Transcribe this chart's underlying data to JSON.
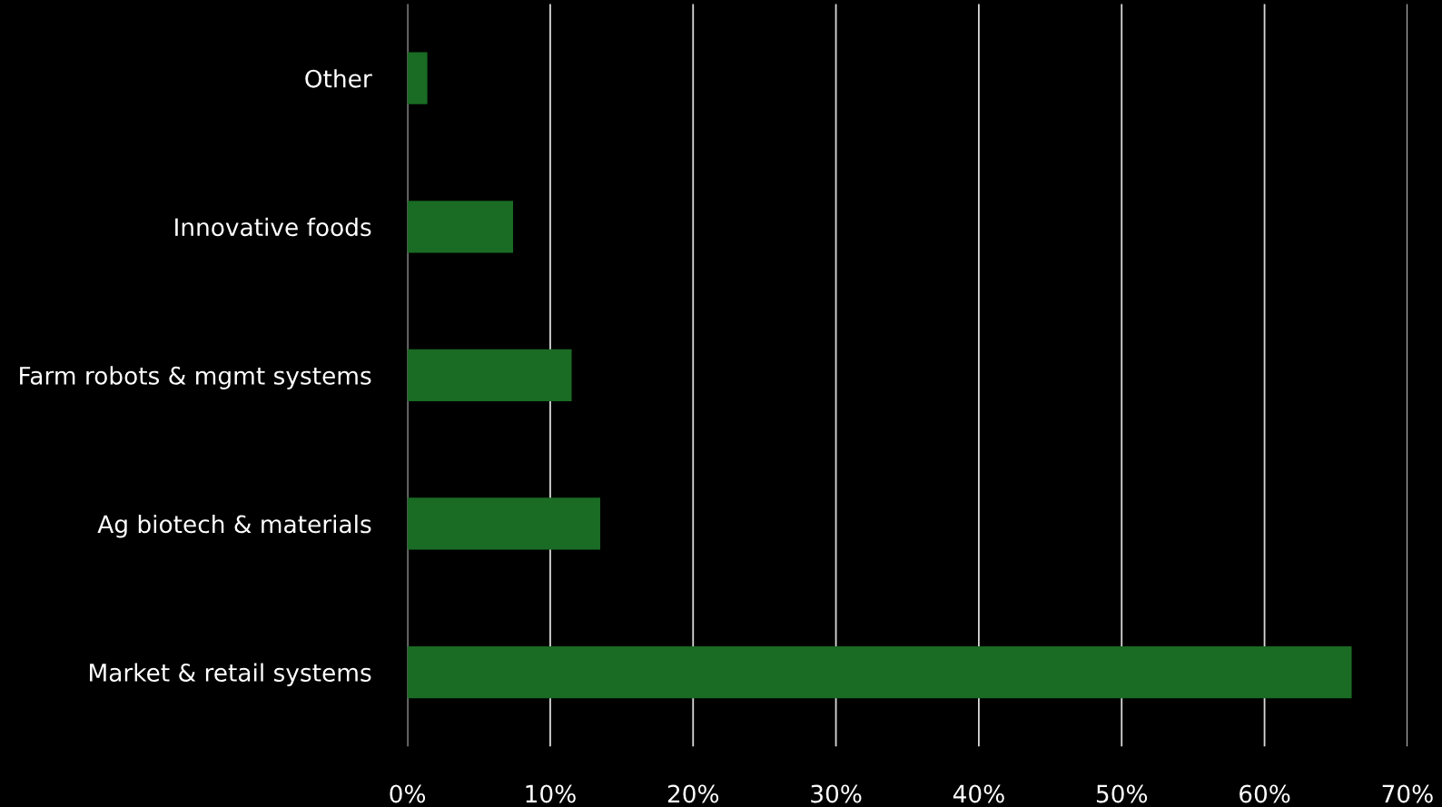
{
  "chart_data": {
    "type": "bar",
    "orientation": "horizontal",
    "categories": [
      "Other",
      "Innovative foods",
      "Farm robots & mgmt systems",
      "Ag biotech & materials",
      "Market & retail systems"
    ],
    "values": [
      1.4,
      7.4,
      11.5,
      13.5,
      66.1
    ],
    "color": "#1a6b24",
    "xlim": [
      0,
      70
    ],
    "xticks": [
      {
        "value": 0,
        "label": "0%"
      },
      {
        "value": 10,
        "label": "10%"
      },
      {
        "value": 20,
        "label": "20%"
      },
      {
        "value": 30,
        "label": "30%"
      },
      {
        "value": 40,
        "label": "40%"
      },
      {
        "value": 50,
        "label": "50%"
      },
      {
        "value": 60,
        "label": "60%"
      },
      {
        "value": 70,
        "label": "70%"
      }
    ],
    "grid": "x"
  }
}
